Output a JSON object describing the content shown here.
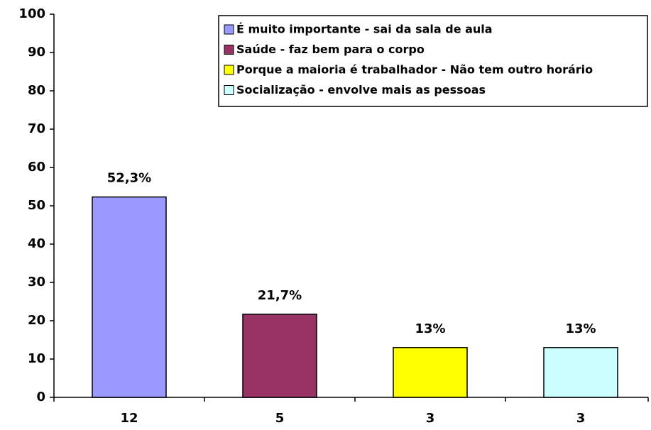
{
  "chart_data": {
    "type": "bar",
    "categories": [
      "12",
      "5",
      "3",
      "3"
    ],
    "series": [
      {
        "name": "É muito importante - sai da sala de aula",
        "color": "#9999ff",
        "values": [
          52.3,
          null,
          null,
          null
        ],
        "value_labels": [
          "52,3%",
          null,
          null,
          null
        ]
      },
      {
        "name": "Saúde - faz bem para o corpo",
        "color": "#993366",
        "values": [
          null,
          21.7,
          null,
          null
        ],
        "value_labels": [
          null,
          "21,7%",
          null,
          null
        ]
      },
      {
        "name": "Porque a maioria é trabalhador - Não tem outro horário",
        "color": "#ffff00",
        "values": [
          null,
          null,
          13,
          null
        ],
        "value_labels": [
          null,
          null,
          "13%",
          null
        ]
      },
      {
        "name": "Socialização - envolve mais as pessoas",
        "color": "#ccffff",
        "values": [
          null,
          null,
          null,
          13
        ],
        "value_labels": [
          null,
          null,
          null,
          "13%"
        ]
      }
    ],
    "ylim": [
      0,
      100
    ],
    "yticks": [
      0,
      10,
      20,
      30,
      40,
      50,
      60,
      70,
      80,
      90,
      100
    ],
    "legend": "upper right"
  }
}
